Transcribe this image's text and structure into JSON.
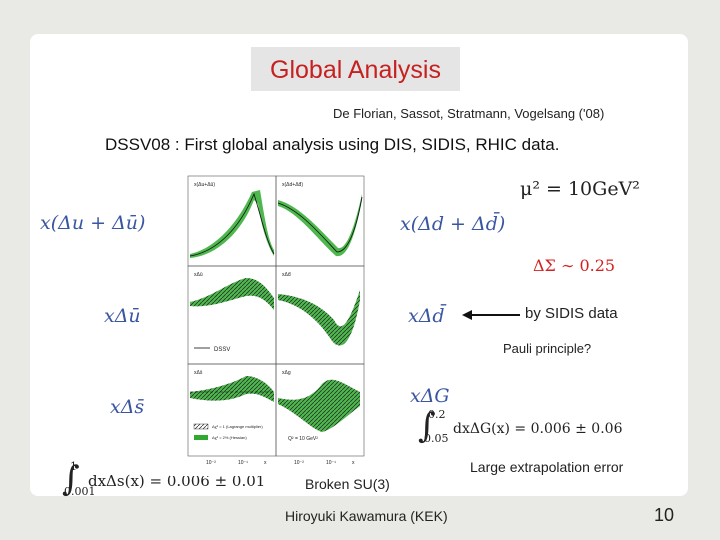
{
  "title": "Global Analysis",
  "authors": "De Florian, Sassot, Stratmann, Vogelsang ('08)",
  "headline": "DSSV08 : First global analysis using DIS, SIDIS, RHIC data.",
  "labels": {
    "xu": "x(Δu + Δū)",
    "xd": "x(Δd + Δd̄)",
    "xubar": "xΔū",
    "xdbar": "xΔd̄",
    "xs": "xΔs̄",
    "xG": "xΔG",
    "mu2": "μ² = 10GeV²",
    "sigma": "ΔΣ ∼ 0.25"
  },
  "integrals": {
    "g_upper": "0.2",
    "g_lower": "0.05",
    "g_text": "dxΔG(x) = 0.006 ± 0.06",
    "s_upper": "1",
    "s_lower": "0.001",
    "s_text": "dxΔs(x) = 0.006 ± 0.01"
  },
  "notes": {
    "sidis": "by SIDIS data",
    "pauli": "Pauli principle?",
    "extrap": "Large extrapolation error",
    "su3": "Broken SU(3)"
  },
  "figure": {
    "legend_dssv": "DSSV",
    "legend_lagrange": "Δχ² = 1 (Lagrange multiplier)",
    "legend_hessian": "Δχ² = 2% (Hessian)",
    "q2_label": "Q² = 10 GeV²",
    "panel_labels": [
      "x(Δu+Δū)",
      "x(Δd+Δd̄)",
      "xΔū",
      "xΔd̄",
      "xΔs̄",
      "xΔg"
    ],
    "x_ticks": [
      "10⁻²",
      "10⁻¹",
      "x",
      "10⁻²",
      "10⁻¹",
      "x"
    ]
  },
  "footer": "Hiroyuki Kawamura (KEK)",
  "page_number": "10",
  "colors": {
    "title": "#c62020",
    "band": "#22aa22",
    "math": "#3a56a3"
  }
}
